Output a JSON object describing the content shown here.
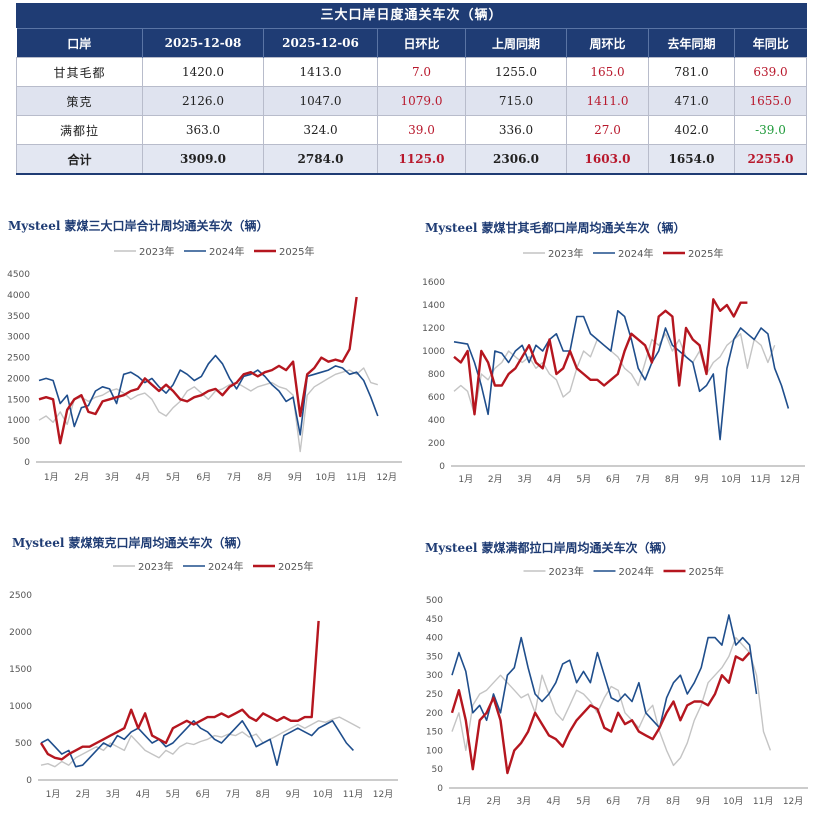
{
  "table": {
    "title": "三大口岸日度通关车次（辆）",
    "headers": [
      "口岸",
      "2025-12-08",
      "2025-12-06",
      "日环比",
      "上周同期",
      "周环比",
      "去年同期",
      "年同比"
    ],
    "rows": [
      {
        "port": "甘其毛都",
        "cur": "1420.0",
        "prev": "1413.0",
        "dod": "7.0",
        "last_week": "1255.0",
        "wow": "165.0",
        "last_year": "781.0",
        "yoy": "639.0"
      },
      {
        "port": "策克",
        "cur": "2126.0",
        "prev": "1047.0",
        "dod": "1079.0",
        "last_week": "715.0",
        "wow": "1411.0",
        "last_year": "471.0",
        "yoy": "1655.0"
      },
      {
        "port": "满都拉",
        "cur": "363.0",
        "prev": "324.0",
        "dod": "39.0",
        "last_week": "336.0",
        "wow": "27.0",
        "last_year": "402.0",
        "yoy": "-39.0"
      }
    ],
    "total": {
      "port": "合计",
      "cur": "3909.0",
      "prev": "2784.0",
      "dod": "1125.0",
      "last_week": "2306.0",
      "wow": "1603.0",
      "last_year": "1654.0",
      "yoy": "2255.0"
    }
  },
  "colors": {
    "y2023": "#c4c4c4",
    "y2024": "#1f4e8c",
    "y2025": "#b5161f",
    "header": "#1f3c74",
    "positive": "#b8182c",
    "negative": "#1f9a3a"
  },
  "chart_data": [
    {
      "type": "line",
      "title": "Mysteel 蒙煤三大口岸合计周均通关车次（辆）",
      "x_labels": [
        "1月",
        "2月",
        "3月",
        "4月",
        "5月",
        "6月",
        "7月",
        "8月",
        "9月",
        "10月",
        "11月",
        "12月"
      ],
      "ylim": [
        0,
        4500
      ],
      "yticks": [
        0,
        500,
        1000,
        1500,
        2000,
        2500,
        3000,
        3500,
        4000,
        4500
      ],
      "legend": "top-center",
      "series": [
        {
          "name": "2023年",
          "values": [
            1000,
            1100,
            950,
            1200,
            900,
            1500,
            1550,
            1450,
            1550,
            1600,
            1700,
            1750,
            1650,
            1500,
            1600,
            1650,
            1500,
            1200,
            1100,
            1300,
            1450,
            1700,
            1800,
            1650,
            1500,
            1700,
            1750,
            1850,
            1900,
            1800,
            1700,
            1800,
            1850,
            1900,
            1800,
            1750,
            1600,
            250,
            1600,
            1800,
            1900,
            2000,
            2100,
            2150,
            2200,
            2100,
            2250,
            1900,
            1850
          ]
        },
        {
          "name": "2024年",
          "values": [
            1950,
            2000,
            1950,
            1400,
            1600,
            850,
            1300,
            1350,
            1700,
            1800,
            1750,
            1400,
            2100,
            2150,
            2050,
            1900,
            2000,
            1800,
            1650,
            1850,
            2200,
            2100,
            1950,
            2050,
            2350,
            2550,
            2350,
            2000,
            1750,
            2050,
            2100,
            2200,
            2050,
            1850,
            1700,
            1450,
            1550,
            650,
            2050,
            2100,
            2150,
            2200,
            2300,
            2250,
            2100,
            2150,
            1950,
            1550,
            1100
          ]
        },
        {
          "name": "2025年",
          "values": [
            1500,
            1550,
            1500,
            450,
            1250,
            1500,
            1600,
            1200,
            1150,
            1450,
            1500,
            1550,
            1600,
            1700,
            1750,
            2000,
            1850,
            1700,
            1850,
            1700,
            1500,
            1450,
            1550,
            1600,
            1700,
            1750,
            1600,
            1800,
            1900,
            2100,
            2150,
            2050,
            2150,
            2200,
            2300,
            2200,
            2400,
            1100,
            2100,
            2250,
            2500,
            2400,
            2450,
            2400,
            2700,
            3950
          ]
        }
      ]
    },
    {
      "type": "line",
      "title": "Mysteel 蒙煤甘其毛都口岸周均通关车次（辆）",
      "x_labels": [
        "1月",
        "2月",
        "3月",
        "4月",
        "5月",
        "6月",
        "7月",
        "8月",
        "9月",
        "10月",
        "11月",
        "12月"
      ],
      "ylim": [
        0,
        1600
      ],
      "yticks": [
        0,
        200,
        400,
        600,
        800,
        1000,
        1200,
        1400,
        1600
      ],
      "legend": "top-center",
      "series": [
        {
          "name": "2023年",
          "values": [
            650,
            700,
            650,
            450,
            800,
            750,
            850,
            900,
            1000,
            950,
            900,
            950,
            850,
            900,
            800,
            750,
            600,
            650,
            850,
            1000,
            950,
            1100,
            1050,
            1000,
            950,
            850,
            800,
            700,
            900,
            1100,
            1050,
            1150,
            1000,
            1100,
            950,
            900,
            1000,
            800,
            900,
            950,
            1050,
            1100,
            1150,
            850,
            1100,
            1050,
            900,
            1050
          ]
        },
        {
          "name": "2024年",
          "values": [
            1080,
            1070,
            1060,
            900,
            700,
            450,
            1000,
            980,
            900,
            1000,
            1050,
            900,
            1050,
            1000,
            1100,
            1150,
            1000,
            1000,
            1300,
            1300,
            1150,
            1100,
            1050,
            1000,
            1350,
            1300,
            1100,
            850,
            750,
            900,
            1000,
            1200,
            1050,
            1000,
            950,
            900,
            650,
            700,
            800,
            230,
            850,
            1100,
            1200,
            1150,
            1100,
            1200,
            1150,
            850,
            700,
            500
          ]
        },
        {
          "name": "2025年",
          "values": [
            950,
            900,
            1000,
            450,
            1000,
            900,
            700,
            700,
            800,
            850,
            950,
            1050,
            900,
            850,
            1100,
            800,
            850,
            1000,
            850,
            800,
            750,
            750,
            700,
            750,
            800,
            1000,
            1150,
            1100,
            1050,
            900,
            1300,
            1350,
            1300,
            700,
            1200,
            1100,
            1050,
            800,
            1450,
            1350,
            1400,
            1300,
            1420,
            1420
          ]
        }
      ]
    },
    {
      "type": "line",
      "title": "Mysteel 蒙煤策克口岸周均通关车次（辆）",
      "x_labels": [
        "1月",
        "2月",
        "3月",
        "4月",
        "5月",
        "6月",
        "7月",
        "8月",
        "9月",
        "10月",
        "11月",
        "12月"
      ],
      "ylim": [
        0,
        2500
      ],
      "yticks": [
        0,
        500,
        1000,
        1500,
        2000,
        2500
      ],
      "legend": "top-center",
      "series": [
        {
          "name": "2023年",
          "values": [
            200,
            220,
            180,
            250,
            200,
            300,
            350,
            400,
            450,
            400,
            500,
            450,
            400,
            600,
            500,
            400,
            350,
            300,
            400,
            350,
            450,
            500,
            480,
            520,
            550,
            600,
            580,
            620,
            600,
            650,
            580,
            620,
            500,
            550,
            600,
            650,
            700,
            750,
            700,
            750,
            800,
            780,
            820,
            850,
            800,
            750,
            700
          ]
        },
        {
          "name": "2024年",
          "values": [
            500,
            550,
            450,
            350,
            400,
            180,
            200,
            300,
            400,
            500,
            450,
            600,
            550,
            650,
            700,
            600,
            500,
            550,
            450,
            500,
            600,
            700,
            800,
            700,
            650,
            550,
            500,
            600,
            700,
            800,
            650,
            450,
            500,
            550,
            200,
            600,
            650,
            700,
            650,
            600,
            700,
            750,
            800,
            650,
            500,
            400
          ]
        },
        {
          "name": "2025年",
          "values": [
            500,
            350,
            300,
            280,
            350,
            400,
            450,
            450,
            500,
            550,
            600,
            650,
            700,
            950,
            700,
            900,
            600,
            550,
            500,
            700,
            750,
            800,
            750,
            800,
            850,
            850,
            900,
            850,
            900,
            950,
            850,
            800,
            900,
            850,
            800,
            850,
            800,
            800,
            850,
            850,
            2150
          ]
        }
      ]
    },
    {
      "type": "line",
      "title": "Mysteel 蒙煤满都拉口岸周均通关车次（辆）",
      "x_labels": [
        "1月",
        "2月",
        "3月",
        "4月",
        "5月",
        "6月",
        "7月",
        "8月",
        "9月",
        "10月",
        "11月",
        "12月"
      ],
      "ylim": [
        0,
        500
      ],
      "yticks": [
        0,
        50,
        100,
        150,
        200,
        250,
        300,
        350,
        400,
        450,
        500
      ],
      "legend": "top-center",
      "series": [
        {
          "name": "2023年",
          "values": [
            150,
            200,
            100,
            220,
            250,
            260,
            280,
            300,
            280,
            260,
            240,
            250,
            200,
            300,
            250,
            200,
            180,
            220,
            260,
            250,
            230,
            200,
            240,
            270,
            260,
            200,
            180,
            160,
            200,
            220,
            150,
            100,
            60,
            80,
            120,
            180,
            220,
            280,
            300,
            320,
            350,
            400,
            380,
            360,
            300,
            150,
            100
          ]
        },
        {
          "name": "2024年",
          "values": [
            300,
            360,
            310,
            200,
            220,
            180,
            250,
            200,
            300,
            320,
            400,
            320,
            250,
            230,
            250,
            280,
            330,
            340,
            280,
            310,
            280,
            360,
            300,
            240,
            230,
            250,
            230,
            280,
            200,
            180,
            160,
            240,
            280,
            300,
            250,
            280,
            320,
            400,
            400,
            380,
            460,
            380,
            400,
            380,
            250
          ]
        },
        {
          "name": "2025年",
          "values": [
            200,
            260,
            180,
            50,
            180,
            200,
            240,
            180,
            40,
            100,
            120,
            150,
            200,
            170,
            140,
            130,
            110,
            150,
            180,
            200,
            220,
            210,
            160,
            150,
            200,
            170,
            180,
            150,
            140,
            130,
            160,
            200,
            230,
            180,
            220,
            230,
            230,
            220,
            250,
            300,
            280,
            350,
            340,
            360
          ]
        }
      ]
    }
  ]
}
